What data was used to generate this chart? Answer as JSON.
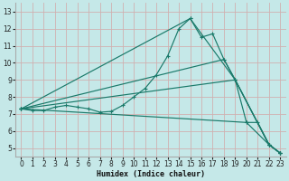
{
  "xlabel": "Humidex (Indice chaleur)",
  "bg_color": "#c5e8e8",
  "grid_color": "#d0b0b0",
  "line_color": "#1a7a6a",
  "xlim": [
    -0.5,
    23.5
  ],
  "ylim": [
    4.5,
    13.5
  ],
  "xticks": [
    0,
    1,
    2,
    3,
    4,
    5,
    6,
    7,
    8,
    9,
    10,
    11,
    12,
    13,
    14,
    15,
    16,
    17,
    18,
    19,
    20,
    21,
    22,
    23
  ],
  "yticks": [
    5,
    6,
    7,
    8,
    9,
    10,
    11,
    12,
    13
  ],
  "lines": [
    {
      "x": [
        0,
        1,
        2,
        3,
        4,
        5,
        6,
        7,
        8,
        9,
        10,
        11,
        12,
        13,
        14,
        15,
        16,
        17,
        18,
        19,
        20,
        21,
        22,
        23
      ],
      "y": [
        7.3,
        7.2,
        7.2,
        7.4,
        7.5,
        7.4,
        7.3,
        7.1,
        7.15,
        7.5,
        8.0,
        8.5,
        9.3,
        10.4,
        12.0,
        12.6,
        11.5,
        11.7,
        10.2,
        9.0,
        6.5,
        6.5,
        5.2,
        4.7
      ]
    },
    {
      "x": [
        0,
        15,
        19,
        22,
        23
      ],
      "y": [
        7.3,
        12.6,
        9.0,
        5.2,
        4.7
      ]
    },
    {
      "x": [
        0,
        18,
        19,
        22,
        23
      ],
      "y": [
        7.3,
        10.2,
        9.0,
        5.2,
        4.7
      ]
    },
    {
      "x": [
        0,
        19,
        22,
        23
      ],
      "y": [
        7.3,
        9.0,
        5.2,
        4.7
      ]
    },
    {
      "x": [
        0,
        20,
        22,
        23
      ],
      "y": [
        7.3,
        6.5,
        5.2,
        4.7
      ]
    }
  ],
  "xlabel_fontsize": 6.0,
  "tick_fontsize": 5.5
}
